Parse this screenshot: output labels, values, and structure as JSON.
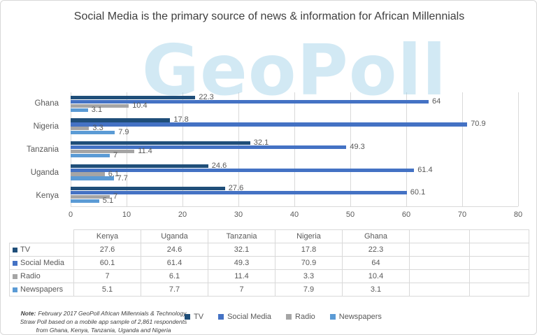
{
  "title": "Social Media is the primary source of news & information for African Millennials",
  "watermark": "GeoPoll",
  "chart_data": {
    "type": "bar",
    "orientation": "horizontal",
    "title": "Social Media is the primary source of news & information for African Millennials",
    "categories": [
      "Ghana",
      "Nigeria",
      "Tanzania",
      "Uganda",
      "Kenya"
    ],
    "series": [
      {
        "name": "TV",
        "color": "#1F4E79",
        "values": [
          22.3,
          17.8,
          32.1,
          24.6,
          27.6
        ]
      },
      {
        "name": "Social Media",
        "color": "#4472C4",
        "values": [
          64,
          70.9,
          49.3,
          61.4,
          60.1
        ]
      },
      {
        "name": "Radio",
        "color": "#A5A5A5",
        "values": [
          10.4,
          3.3,
          11.4,
          6.1,
          7
        ]
      },
      {
        "name": "Newspapers",
        "color": "#5B9BD5",
        "values": [
          3.1,
          7.9,
          7,
          7.7,
          5.1
        ]
      }
    ],
    "xlabel": "",
    "ylabel": "",
    "xlim": [
      0,
      80
    ],
    "xticks": [
      0,
      10,
      20,
      30,
      40,
      50,
      60,
      70,
      80
    ],
    "grid": "vertical",
    "legend_position": "bottom"
  },
  "table": {
    "column_headers": [
      "",
      "Kenya",
      "Uganda",
      "Tanzania",
      "Nigeria",
      "Ghana",
      "",
      ""
    ],
    "rows": [
      {
        "label": "TV",
        "color": "#1F4E79",
        "values": [
          "27.6",
          "24.6",
          "32.1",
          "17.8",
          "22.3"
        ]
      },
      {
        "label": "Social Media",
        "color": "#4472C4",
        "values": [
          "60.1",
          "61.4",
          "49.3",
          "70.9",
          "64"
        ]
      },
      {
        "label": "Radio",
        "color": "#A5A5A5",
        "values": [
          "7",
          "6.1",
          "11.4",
          "3.3",
          "10.4"
        ]
      },
      {
        "label": "Newspapers",
        "color": "#5B9BD5",
        "values": [
          "5.1",
          "7.7",
          "7",
          "7.9",
          "3.1"
        ]
      }
    ]
  },
  "note": {
    "prefix": "Note:",
    "text": "February 2017 GeoPoll African Millennials & Technology Straw Poll based on a mobile app sample of 2,861 respondents from Ghana, Kenya, Tanzania, Uganda and Nigeria"
  },
  "legend": {
    "items": [
      {
        "label": "TV",
        "color": "#1F4E79"
      },
      {
        "label": "Social Media",
        "color": "#4472C4"
      },
      {
        "label": "Radio",
        "color": "#A5A5A5"
      },
      {
        "label": "Newspapers",
        "color": "#5B9BD5"
      }
    ]
  }
}
